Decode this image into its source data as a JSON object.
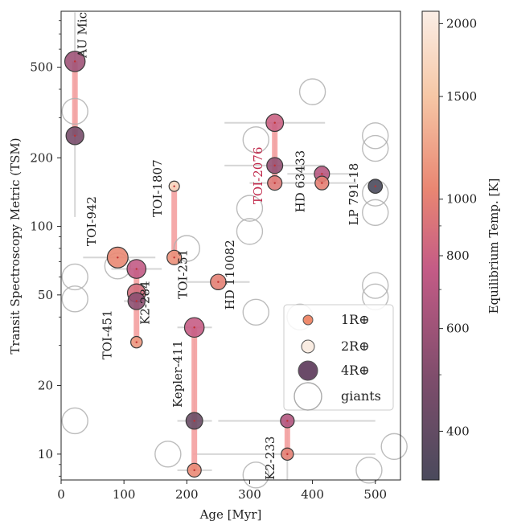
{
  "chart_data": {
    "type": "scatter",
    "xlabel": "Age [Myr]",
    "ylabel": "Transit Spectroscopy Metric (TSM)",
    "xlim": [
      0,
      540
    ],
    "ylim": [
      7.7,
      880
    ],
    "yscale": "log",
    "grid": false,
    "x_ticks": [
      "0",
      "100",
      "200",
      "300",
      "400",
      "500"
    ],
    "y_ticks": [
      "10",
      "20",
      "50",
      "100",
      "200",
      "500"
    ],
    "colorbar": {
      "label": "Equilibrium Temp. [K]",
      "scale": "log",
      "range": [
        330,
        2100
      ],
      "ticks": [
        "400",
        "600",
        "800",
        "1000",
        "1500",
        "2000"
      ],
      "colors": [
        "#4a4a5c",
        "#7f4d6c",
        "#c45b86",
        "#e98672",
        "#f6c7a6",
        "#fbeee6"
      ]
    },
    "legend": {
      "placement": "lower-right",
      "entries": [
        "1R⊕",
        "2R⊕",
        "4R⊕",
        "giants"
      ]
    },
    "young_planets": [
      {
        "age": 22,
        "tsm": 530,
        "radius": 4.2,
        "teq": 600,
        "age_err": [
          22,
          22
        ],
        "tsm_err": [
          300,
          760
        ]
      },
      {
        "age": 22,
        "tsm": 250,
        "radius": 3.5,
        "teq": 470,
        "age_err": [
          22,
          22
        ],
        "tsm_err": [
          110,
          870
        ]
      },
      {
        "age": 90,
        "tsm": 73,
        "radius": 4.3,
        "teq": 1050,
        "age_err": [
          35,
          150
        ],
        "tsm_err": [
          73,
          73
        ]
      },
      {
        "age": 120,
        "tsm": 65,
        "radius": 3.8,
        "teq": 750,
        "age_err": [
          80,
          160
        ],
        "tsm_err": [
          65,
          65
        ]
      },
      {
        "age": 120,
        "tsm": 51,
        "radius": 3.6,
        "teq": 880,
        "age_err": [
          105,
          140
        ],
        "tsm_err": [
          51,
          51
        ]
      },
      {
        "age": 120,
        "tsm": 47,
        "radius": 3.3,
        "teq": 540,
        "age_err": [
          100,
          140
        ],
        "tsm_err": [
          47,
          47
        ]
      },
      {
        "age": 120,
        "tsm": 31,
        "radius": 1.8,
        "teq": 1150,
        "age_err": [
          115,
          125
        ],
        "tsm_err": [
          31,
          31
        ]
      },
      {
        "age": 180,
        "tsm": 150,
        "radius": 1.5,
        "teq": 1700,
        "age_err": [
          180,
          180
        ],
        "tsm_err": [
          150,
          150
        ]
      },
      {
        "age": 180,
        "tsm": 73,
        "radius": 2.6,
        "teq": 1100,
        "age_err": [
          180,
          180
        ],
        "tsm_err": [
          73,
          73
        ]
      },
      {
        "age": 250,
        "tsm": 57,
        "radius": 2.9,
        "teq": 1000,
        "age_err": [
          190,
          300
        ],
        "tsm_err": [
          57,
          57
        ]
      },
      {
        "age": 212,
        "tsm": 36,
        "radius": 4.0,
        "teq": 770,
        "age_err": [
          185,
          240
        ],
        "tsm_err": [
          14,
          36
        ]
      },
      {
        "age": 212,
        "tsm": 14,
        "radius": 3.2,
        "teq": 420,
        "age_err": [
          185,
          240
        ],
        "tsm_err": [
          14,
          14
        ]
      },
      {
        "age": 212,
        "tsm": 8.5,
        "radius": 2.4,
        "teq": 1060,
        "age_err": [
          185,
          240
        ],
        "tsm_err": [
          8.5,
          8.5
        ]
      },
      {
        "age": 340,
        "tsm": 285,
        "radius": 3.4,
        "teq": 800,
        "age_err": [
          260,
          420
        ],
        "tsm_err": [
          190,
          285
        ]
      },
      {
        "age": 340,
        "tsm": 185,
        "radius": 3.0,
        "teq": 560,
        "age_err": [
          260,
          420
        ],
        "tsm_err": [
          185,
          185
        ]
      },
      {
        "age": 340,
        "tsm": 155,
        "radius": 2.6,
        "teq": 950,
        "age_err": [
          300,
          380
        ],
        "tsm_err": [
          155,
          155
        ]
      },
      {
        "age": 415,
        "tsm": 170,
        "radius": 2.8,
        "teq": 700,
        "age_err": [
          360,
          470
        ],
        "tsm_err": [
          170,
          170
        ]
      },
      {
        "age": 415,
        "tsm": 155,
        "radius": 2.4,
        "teq": 1000,
        "age_err": [
          360,
          470
        ],
        "tsm_err": [
          155,
          155
        ]
      },
      {
        "age": 360,
        "tsm": 14,
        "radius": 2.4,
        "teq": 680,
        "age_err": [
          250,
          500
        ],
        "tsm_err": [
          7.7,
          14
        ]
      },
      {
        "age": 360,
        "tsm": 10,
        "radius": 2.0,
        "teq": 1000,
        "age_err": [
          210,
          500
        ],
        "tsm_err": [
          10,
          10
        ]
      },
      {
        "age": 500,
        "tsm": 150,
        "radius": 2.5,
        "teq": 330,
        "age_err": [
          500,
          500
        ],
        "tsm_err": [
          150,
          150
        ]
      }
    ],
    "giant_planets": [
      {
        "age": 22,
        "tsm": 320
      },
      {
        "age": 22,
        "tsm": 60
      },
      {
        "age": 22,
        "tsm": 48
      },
      {
        "age": 22,
        "tsm": 14
      },
      {
        "age": 90,
        "tsm": 67
      },
      {
        "age": 200,
        "tsm": 80
      },
      {
        "age": 300,
        "tsm": 95
      },
      {
        "age": 300,
        "tsm": 120
      },
      {
        "age": 310,
        "tsm": 240
      },
      {
        "age": 310,
        "tsm": 42
      },
      {
        "age": 400,
        "tsm": 390
      },
      {
        "age": 380,
        "tsm": 40
      },
      {
        "age": 170,
        "tsm": 10
      },
      {
        "age": 310,
        "tsm": 8.1
      },
      {
        "age": 500,
        "tsm": 250
      },
      {
        "age": 500,
        "tsm": 220
      },
      {
        "age": 500,
        "tsm": 140
      },
      {
        "age": 500,
        "tsm": 115
      },
      {
        "age": 500,
        "tsm": 55
      },
      {
        "age": 500,
        "tsm": 49
      },
      {
        "age": 530,
        "tsm": 10.8
      },
      {
        "age": 490,
        "tsm": 8.5
      }
    ],
    "annotations": [
      {
        "text": "AU Mic",
        "age": 40,
        "tsm": 550,
        "color": "#222222"
      },
      {
        "text": "TOI-942",
        "age": 55,
        "tsm": 82,
        "color": "#222222"
      },
      {
        "text": "TOI-451",
        "age": 80,
        "tsm": 26,
        "color": "#222222"
      },
      {
        "text": "K2-284",
        "age": 140,
        "tsm": 37,
        "color": "#222222"
      },
      {
        "text": "TOI-1807",
        "age": 160,
        "tsm": 110,
        "color": "#222222"
      },
      {
        "text": "TOI-251",
        "age": 200,
        "tsm": 48,
        "color": "#222222"
      },
      {
        "text": "HD 110082",
        "age": 275,
        "tsm": 43,
        "color": "#222222"
      },
      {
        "text": "Kepler-411",
        "age": 192,
        "tsm": 16,
        "color": "#222222"
      },
      {
        "text": "TOI-2076",
        "age": 320,
        "tsm": 125,
        "color": "#c0284a"
      },
      {
        "text": "HD 63433",
        "age": 387,
        "tsm": 115,
        "color": "#222222"
      },
      {
        "text": "LP 791-18",
        "age": 472,
        "tsm": 101,
        "color": "#222222"
      },
      {
        "text": "K2-233",
        "age": 339,
        "tsm": 7.7,
        "color": "#222222"
      }
    ]
  }
}
